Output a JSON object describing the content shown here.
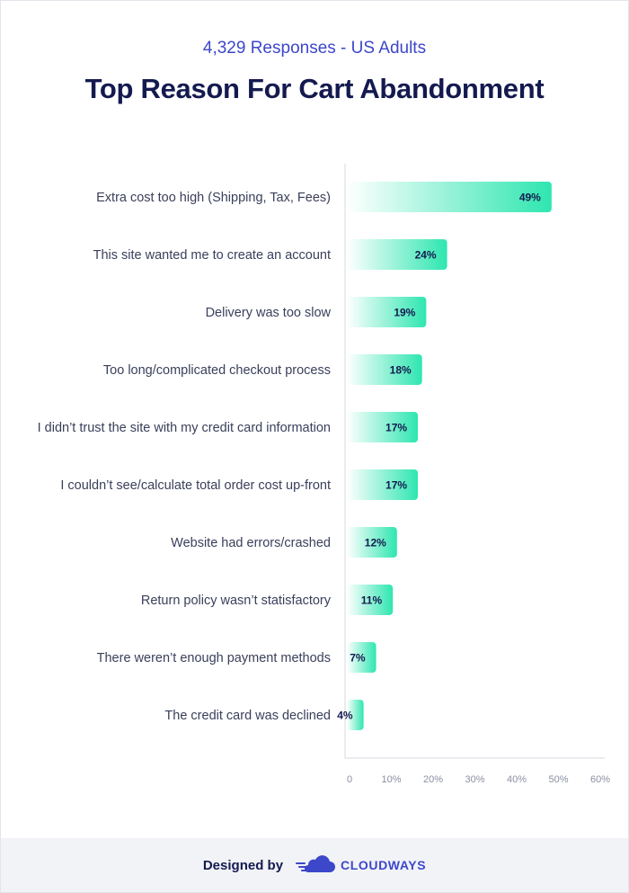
{
  "subtitle": "4,329 Responses - US Adults",
  "title": "Top Reason For Cart Abandonment",
  "footer": {
    "designed_by": "Designed by",
    "brand": "CLOUDWAYS",
    "logo_icon": "cloud-logo-icon"
  },
  "colors": {
    "bar_start": "#ffffff",
    "bar_end": "#2ee6b0",
    "label_text": "#3a3f5a",
    "value_text": "#141a4f",
    "tick_text": "#8a8fa3",
    "axis": "#d5d8df",
    "accent": "#3d47c9"
  },
  "chart_data": {
    "type": "bar",
    "orientation": "horizontal",
    "categories": [
      "Extra cost too high (Shipping, Tax, Fees)",
      "This site wanted me to create an account",
      "Delivery was too slow",
      "Too long/complicated checkout process",
      "I didn’t trust the site with my credit card information",
      "I couldn’t see/calculate total order cost up-front",
      "Website had errors/crashed",
      "Return policy wasn’t statisfactory",
      "There weren’t enough payment methods",
      "The credit card was declined"
    ],
    "values": [
      49,
      24,
      19,
      18,
      17,
      17,
      12,
      11,
      7,
      4
    ],
    "value_labels": [
      "49%",
      "24%",
      "19%",
      "18%",
      "17%",
      "17%",
      "12%",
      "11%",
      "7%",
      "4%"
    ],
    "xlim": [
      0,
      60
    ],
    "x_ticks": [
      "0",
      "10%",
      "20%",
      "30%",
      "40%",
      "50%",
      "60%"
    ],
    "grid": false
  }
}
